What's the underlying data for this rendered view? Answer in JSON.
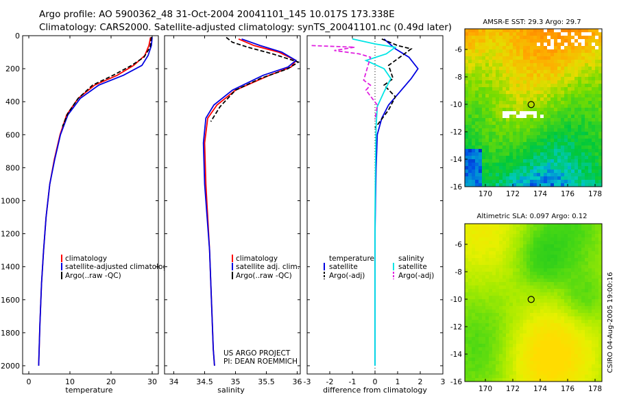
{
  "title_line1": "Argo profile: AO 5900362_48 31-Oct-2004 20041101_145 10.017S 173.338E",
  "title_line2": "Climatology: CARS2000. Satellite-adjusted climatology: synTS_20041101.nc (0.49d later)",
  "colors": {
    "red": "#ff0000",
    "blue": "#0000e0",
    "black": "#000000",
    "cyan": "#00e5e5",
    "magenta": "#e020e0"
  },
  "credits": [
    "US ARGO PROJECT",
    "PI: DEAN ROEMMICH"
  ],
  "side_label": "CSIRO 04-Aug-2005 19:00:16",
  "chart_data": [
    {
      "type": "line",
      "id": "temperature",
      "xlabel": "temperature",
      "ylabel": "",
      "xlim": [
        -1.5,
        31.5
      ],
      "ylim": [
        2050,
        0
      ],
      "xticks": [
        0,
        10,
        20,
        30
      ],
      "yticks": [
        0,
        200,
        400,
        600,
        800,
        1000,
        1200,
        1400,
        1600,
        1800,
        2000
      ],
      "legend": [
        "climatology",
        "satellite-adjusted climatology",
        "Argo(..raw -QC)"
      ],
      "series": [
        {
          "name": "climatology",
          "color": "red",
          "dash": false,
          "x": [
            29.6,
            29.2,
            28.2,
            25.5,
            21.5,
            16,
            12,
            9.2,
            7.6,
            6.2,
            5.1,
            4.2,
            3.6,
            3.1,
            2.7,
            2.4
          ],
          "y": [
            10,
            60,
            120,
            180,
            240,
            300,
            380,
            480,
            600,
            750,
            900,
            1100,
            1300,
            1500,
            1750,
            2000
          ]
        },
        {
          "name": "satellite-adjusted climatology",
          "color": "blue",
          "dash": false,
          "x": [
            30.0,
            29.8,
            29.0,
            27.5,
            23,
            17,
            12.5,
            9.5,
            7.7,
            6.3,
            5.1,
            4.2,
            3.6,
            3.1,
            2.7,
            2.4
          ],
          "y": [
            10,
            60,
            120,
            180,
            240,
            300,
            380,
            480,
            600,
            750,
            900,
            1100,
            1300,
            1500,
            1750,
            2000
          ]
        },
        {
          "name": "Argo(..raw -QC)",
          "color": "black",
          "dash": true,
          "x": [
            29.8,
            29.5,
            28.0,
            25.0,
            20.5,
            15.5,
            12,
            9.5,
            8.2
          ],
          "y": [
            8,
            70,
            130,
            180,
            240,
            300,
            380,
            470,
            550
          ]
        }
      ]
    },
    {
      "type": "line",
      "id": "salinity",
      "xlabel": "salinity",
      "ylabel": "",
      "xlim": [
        33.85,
        36.05
      ],
      "ylim": [
        2050,
        0
      ],
      "xticks": [
        34,
        34.5,
        35,
        35.5,
        36
      ],
      "yticks": [
        0,
        200,
        400,
        600,
        800,
        1000,
        1200,
        1400,
        1600,
        1800,
        2000
      ],
      "legend": [
        "climatology",
        "satellite adj. clim.",
        "Argo(..raw -QC)"
      ],
      "series": [
        {
          "name": "climatology",
          "color": "red",
          "dash": false,
          "x": [
            35.05,
            35.3,
            35.7,
            35.98,
            35.9,
            35.55,
            35.0,
            34.7,
            34.55,
            34.5,
            34.52,
            34.55,
            34.58,
            34.6,
            34.62,
            34.64,
            34.66
          ],
          "y": [
            20,
            60,
            100,
            150,
            190,
            240,
            330,
            420,
            500,
            650,
            900,
            1100,
            1300,
            1500,
            1700,
            1900,
            2000
          ]
        },
        {
          "name": "satellite adj. clim.",
          "color": "blue",
          "dash": false,
          "x": [
            35.1,
            35.4,
            35.75,
            35.98,
            35.85,
            35.45,
            34.95,
            34.65,
            34.52,
            34.48,
            34.5,
            34.54,
            34.58,
            34.6,
            34.62,
            34.64,
            34.66
          ],
          "y": [
            20,
            60,
            100,
            150,
            190,
            240,
            330,
            420,
            500,
            650,
            900,
            1100,
            1300,
            1500,
            1700,
            1900,
            2000
          ]
        },
        {
          "name": "Argo(..raw -QC)",
          "color": "black",
          "dash": true,
          "x": [
            34.85,
            34.95,
            35.2,
            35.6,
            36.02,
            35.85,
            35.4,
            35.0,
            34.75,
            34.6
          ],
          "y": [
            10,
            40,
            70,
            110,
            160,
            200,
            260,
            330,
            430,
            520
          ]
        }
      ]
    },
    {
      "type": "line",
      "id": "difference",
      "xlabel": "difference from climatology",
      "ylabel": "",
      "xlim": [
        -3,
        3
      ],
      "ylim": [
        2050,
        0
      ],
      "xticks": [
        -3,
        -2,
        -1,
        0,
        1,
        2,
        3
      ],
      "yticks": [
        0,
        200,
        400,
        600,
        800,
        1000,
        1200,
        1400,
        1600,
        1800,
        2000
      ],
      "legend_temperature": [
        "temperature",
        "satellite",
        "Argo(-adj)"
      ],
      "legend_salinity": [
        "salinity",
        "satellite",
        "Argo(-adj)"
      ],
      "series": [
        {
          "name": "temperature satellite",
          "color": "blue",
          "dash": false,
          "x": [
            0.4,
            0.9,
            1.5,
            1.9,
            1.6,
            1.1,
            0.6,
            0.3,
            0.1,
            0.05,
            0.02,
            0.0,
            0.0,
            0.0,
            0.0
          ],
          "y": [
            20,
            80,
            130,
            200,
            260,
            340,
            420,
            500,
            600,
            800,
            1000,
            1200,
            1500,
            1800,
            2000
          ]
        },
        {
          "name": "temperature Argo(-adj)",
          "color": "black",
          "dash": true,
          "x": [
            0.3,
            1.0,
            1.6,
            1.2,
            0.6,
            0.8,
            0.4,
            0.9,
            0.6,
            0.0
          ],
          "y": [
            20,
            60,
            80,
            120,
            180,
            260,
            300,
            370,
            450,
            560
          ]
        },
        {
          "name": "salinity satellite",
          "color": "cyan",
          "dash": false,
          "x": [
            -1.0,
            0.0,
            0.9,
            0.5,
            -0.4,
            0.4,
            0.7,
            0.4,
            0.1,
            0.05,
            0.02,
            0.0,
            0.0,
            0.0,
            0.0
          ],
          "y": [
            20,
            50,
            70,
            110,
            150,
            200,
            260,
            340,
            430,
            550,
            800,
            1100,
            1400,
            1700,
            2000
          ]
        },
        {
          "name": "salinity Argo(-adj)",
          "color": "magenta",
          "dash": true,
          "x": [
            -2.8,
            -0.9,
            -1.8,
            -0.7,
            -0.2,
            -0.5,
            -0.2,
            -0.4,
            0.1,
            0.0
          ],
          "y": [
            60,
            70,
            90,
            110,
            130,
            270,
            300,
            330,
            420,
            510
          ]
        }
      ]
    },
    {
      "type": "heatmap",
      "id": "sst-map",
      "title": "AMSR-E SST: 29.3 Argo: 29.7",
      "xlim": [
        168.5,
        178.5
      ],
      "ylim": [
        -16,
        -4.5
      ],
      "xticks": [
        170,
        172,
        174,
        176,
        178
      ],
      "yticks": [
        -6,
        -8,
        -10,
        -12,
        -14,
        -16
      ],
      "marker": {
        "x": 173.338,
        "y": -10.017
      }
    },
    {
      "type": "heatmap",
      "id": "sla-map",
      "title": "Altimetric SLA: 0.097 Argo: 0.12",
      "xlim": [
        168.5,
        178.5
      ],
      "ylim": [
        -16,
        -4.5
      ],
      "xticks": [
        170,
        172,
        174,
        176,
        178
      ],
      "yticks": [
        -6,
        -8,
        -10,
        -12,
        -14,
        -16
      ],
      "marker": {
        "x": 173.338,
        "y": -10.017
      }
    }
  ]
}
